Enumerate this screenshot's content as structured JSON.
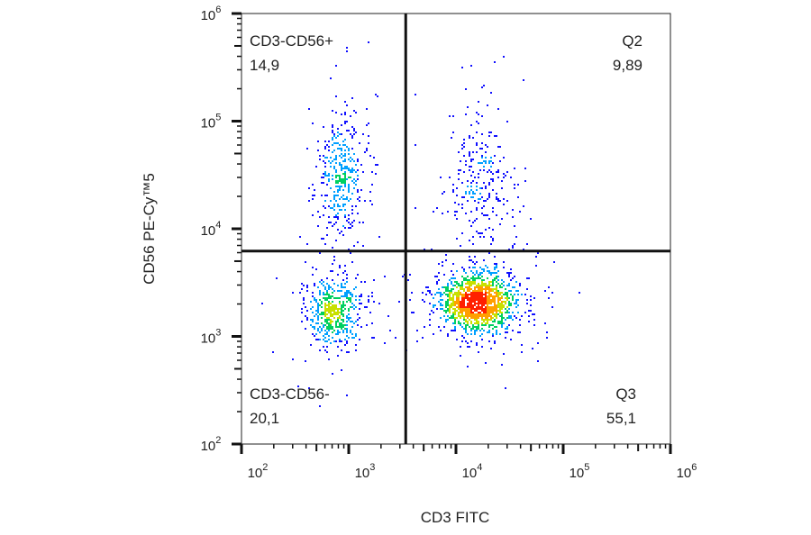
{
  "chart_data": {
    "type": "scatter",
    "subtype": "flow-cytometry-density-dot-plot",
    "xlabel": "CD3 FITC",
    "ylabel": "CD56 PE-Cy™5",
    "x_scale": "log",
    "y_scale": "log",
    "xlim": [
      100,
      1000000
    ],
    "ylim": [
      100,
      1000000
    ],
    "x_ticks": [
      {
        "base": "10",
        "exp": "2",
        "value": 100
      },
      {
        "base": "10",
        "exp": "3",
        "value": 1000
      },
      {
        "base": "10",
        "exp": "4",
        "value": 10000
      },
      {
        "base": "10",
        "exp": "5",
        "value": 100000
      },
      {
        "base": "10",
        "exp": "6",
        "value": 1000000
      }
    ],
    "y_ticks": [
      {
        "base": "10",
        "exp": "2",
        "value": 100
      },
      {
        "base": "10",
        "exp": "3",
        "value": 1000
      },
      {
        "base": "10",
        "exp": "4",
        "value": 10000
      },
      {
        "base": "10",
        "exp": "5",
        "value": 100000
      },
      {
        "base": "10",
        "exp": "6",
        "value": 1000000
      }
    ],
    "gates": {
      "x_threshold": 3400,
      "y_threshold": 6200,
      "color": "#111111"
    },
    "quadrants": [
      {
        "position": "top-left",
        "name": "CD3-CD56+",
        "percent": "14,9"
      },
      {
        "position": "top-right",
        "name": "Q2",
        "percent": "9,89"
      },
      {
        "position": "bottom-left",
        "name": "CD3-CD56-",
        "percent": "20,1"
      },
      {
        "position": "bottom-right",
        "name": "Q3",
        "percent": "55,1"
      }
    ],
    "populations": [
      {
        "quadrant": "top-left",
        "center_x": 850,
        "center_y": 32000,
        "spread_x_decades": 0.12,
        "spread_y_decades": 0.3,
        "relative_size": 14.9
      },
      {
        "quadrant": "bottom-left",
        "center_x": 700,
        "center_y": 1750,
        "spread_x_decades": 0.14,
        "spread_y_decades": 0.16,
        "relative_size": 20.1
      },
      {
        "quadrant": "bottom-right",
        "center_x": 16000,
        "center_y": 2100,
        "spread_x_decades": 0.18,
        "spread_y_decades": 0.14,
        "relative_size": 55.1
      },
      {
        "quadrant": "top-right",
        "center_x": 17000,
        "center_y": 28000,
        "spread_x_decades": 0.15,
        "spread_y_decades": 0.3,
        "relative_size": 9.89
      }
    ],
    "density_colors": [
      "#1010ff",
      "#00a0ff",
      "#00d060",
      "#c8e000",
      "#ffa000",
      "#ff2000"
    ],
    "grid": false,
    "legend": "none"
  }
}
